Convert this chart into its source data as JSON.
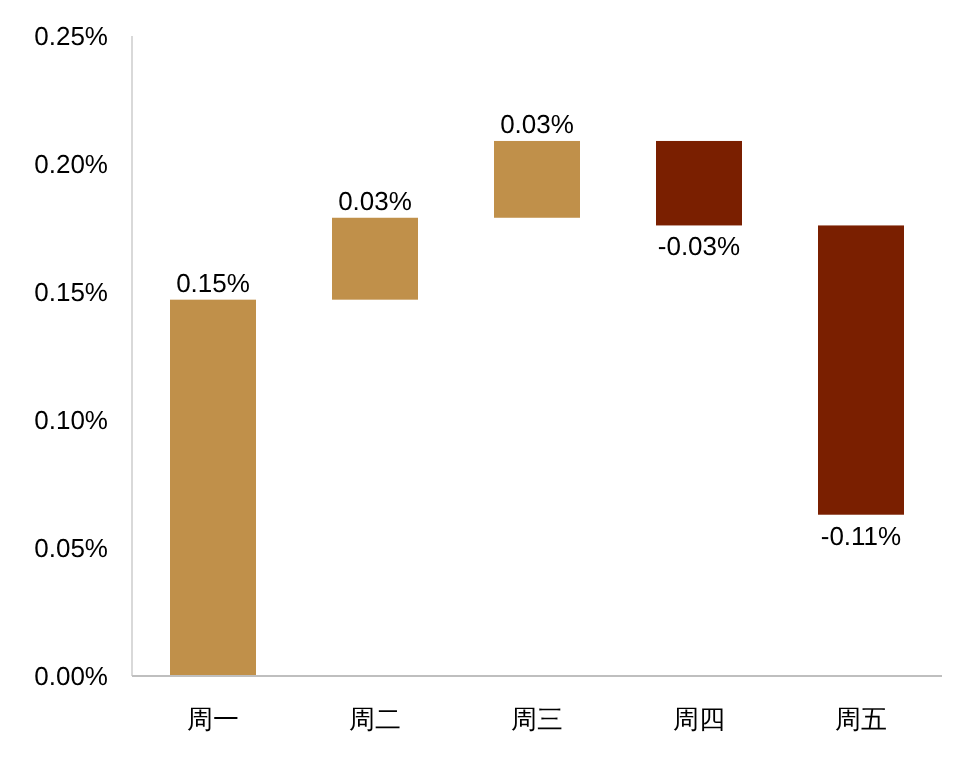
{
  "chart_data": {
    "type": "bar",
    "categories": [
      "周一",
      "周二",
      "周三",
      "周四",
      "周五"
    ],
    "base": [
      0,
      0.147,
      0.179,
      0.209,
      0.176
    ],
    "values": [
      0.147,
      0.032,
      0.03,
      -0.033,
      -0.113
    ],
    "colors": [
      "#c0904a",
      "#c0904a",
      "#c0904a",
      "#7a1f00",
      "#7a1f00"
    ],
    "value_labels": [
      "0.15%",
      "0.03%",
      "0.03%",
      "-0.03%",
      "-0.11%"
    ],
    "ylim": [
      0,
      0.25
    ],
    "yticks": [
      {
        "value": 0,
        "label": "0.00%"
      },
      {
        "value": 0.05,
        "label": "0.05%"
      },
      {
        "value": 0.1,
        "label": "0.10%"
      },
      {
        "value": 0.15,
        "label": "0.15%"
      },
      {
        "value": 0.2,
        "label": "0.20%"
      },
      {
        "value": 0.25,
        "label": "0.25%"
      }
    ],
    "grid": false
  }
}
